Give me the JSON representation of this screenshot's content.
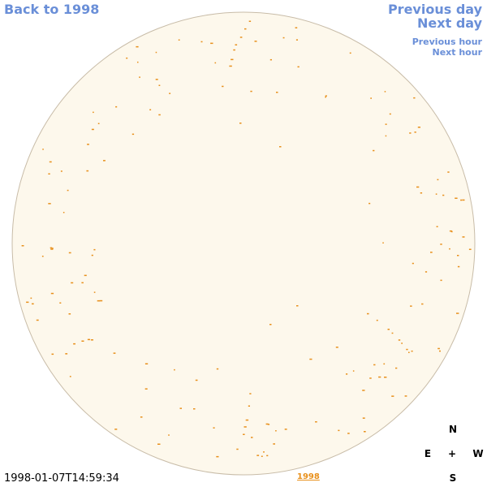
{
  "nav": {
    "back": "Back to 1998",
    "previous_day": "Previous day",
    "next_day": "Next day",
    "previous_hour": "Previous hour",
    "next_hour": "Next hour"
  },
  "compass": {
    "north": "N",
    "east": "E",
    "center": "+",
    "west": "W",
    "south": "S"
  },
  "timestamp": "1998-01-07T14:59:34",
  "year_link": "1998"
}
